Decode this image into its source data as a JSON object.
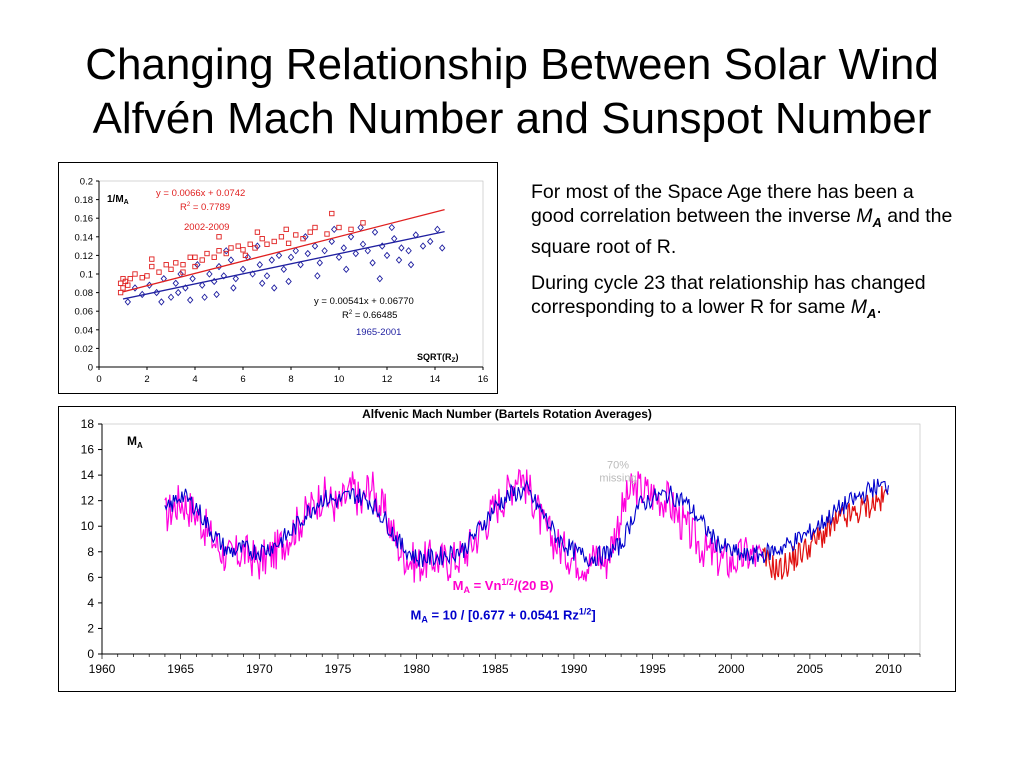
{
  "title": {
    "line1": "Changing Relationship Between Solar Wind",
    "line2": "Alfvén Mach Number and Sunspot Number"
  },
  "text": {
    "p1_a": "For most of the Space Age there has been a good correlation between the inverse ",
    "p1_ma": "M",
    "p1_ma_sub": "A",
    "p1_b": " and the square root of R.",
    "p2_a": "During cycle 23 that relationship has changed corresponding to a lower R for same ",
    "p2_ma": "M",
    "p2_ma_sub": "A",
    "p2_b": "."
  },
  "chart_data": [
    {
      "type": "scatter",
      "title": "",
      "ylabel_main": "1/M",
      "ylabel_sub": "A",
      "xlabel_main": "SQRT(R",
      "xlabel_sub": "Z",
      "xlabel_end": ")",
      "xlim": [
        0,
        16
      ],
      "ylim": [
        0,
        0.2
      ],
      "xticks": [
        "0",
        "2",
        "4",
        "6",
        "8",
        "10",
        "12",
        "14",
        "16"
      ],
      "yticks": [
        "0",
        "0.02",
        "0.04",
        "0.06",
        "0.08",
        "0.1",
        "0.12",
        "0.14",
        "0.16",
        "0.18",
        "0.2"
      ],
      "grid": false,
      "series": [
        {
          "name": "2002-2009",
          "color": "#e02020",
          "marker": "square",
          "fit_eq": "y = 0.0066x + 0.0742",
          "fit_r2_label": "R",
          "fit_r2_value": " = 0.7789",
          "fit": {
            "slope": 0.0066,
            "intercept": 0.0742,
            "x_range": [
              1,
              14.4
            ]
          },
          "x": [
            0.9,
            0.9,
            1.0,
            1.0,
            1.1,
            1.2,
            1.3,
            1.5,
            1.8,
            2.0,
            2.2,
            2.5,
            2.8,
            3.0,
            3.2,
            3.5,
            3.8,
            4.0,
            4.3,
            4.5,
            4.8,
            5.0,
            5.3,
            5.5,
            5.8,
            6.0,
            6.3,
            6.5,
            6.8,
            7.0,
            7.3,
            7.6,
            7.9,
            8.2,
            8.5,
            8.8,
            9.0,
            9.5,
            9.7,
            10.0,
            10.5,
            11.0,
            4.0,
            5.0,
            6.1,
            3.5,
            7.8,
            2.2,
            6.6
          ],
          "y": [
            0.08,
            0.09,
            0.095,
            0.085,
            0.092,
            0.088,
            0.095,
            0.1,
            0.096,
            0.098,
            0.108,
            0.102,
            0.11,
            0.105,
            0.112,
            0.11,
            0.118,
            0.108,
            0.115,
            0.122,
            0.118,
            0.125,
            0.122,
            0.128,
            0.13,
            0.126,
            0.132,
            0.128,
            0.138,
            0.132,
            0.135,
            0.14,
            0.133,
            0.142,
            0.138,
            0.145,
            0.15,
            0.143,
            0.165,
            0.15,
            0.148,
            0.155,
            0.118,
            0.14,
            0.12,
            0.102,
            0.148,
            0.116,
            0.145
          ]
        },
        {
          "name": "1965-2001",
          "color": "#1f1fa0",
          "marker": "diamond",
          "fit_eq": "y = 0.00541x + 0.06770",
          "fit_r2_label": "R",
          "fit_r2_value": " = 0.66485",
          "fit": {
            "slope": 0.00541,
            "intercept": 0.0677,
            "x_range": [
              1,
              14.4
            ]
          },
          "x": [
            1.2,
            1.5,
            1.8,
            2.1,
            2.4,
            2.7,
            3.0,
            3.2,
            3.4,
            3.6,
            3.9,
            4.1,
            4.3,
            4.6,
            4.8,
            5.0,
            5.2,
            5.5,
            5.7,
            6.0,
            6.2,
            6.4,
            6.7,
            7.0,
            7.2,
            7.5,
            7.7,
            8.0,
            8.2,
            8.4,
            8.7,
            9.0,
            9.2,
            9.4,
            9.7,
            10.0,
            10.2,
            10.5,
            10.7,
            11.0,
            11.2,
            11.5,
            11.8,
            12.0,
            12.3,
            12.6,
            12.9,
            13.2,
            13.5,
            13.8,
            14.1,
            14.3,
            2.6,
            3.3,
            4.4,
            5.6,
            6.8,
            7.9,
            9.1,
            10.3,
            11.4,
            12.5,
            8.6,
            9.8,
            10.9,
            3.8,
            5.3,
            6.6,
            7.3,
            12.2,
            13.0,
            4.9,
            11.7
          ],
          "y": [
            0.07,
            0.085,
            0.078,
            0.088,
            0.08,
            0.095,
            0.075,
            0.09,
            0.1,
            0.085,
            0.095,
            0.11,
            0.088,
            0.1,
            0.092,
            0.108,
            0.098,
            0.115,
            0.095,
            0.105,
            0.118,
            0.1,
            0.11,
            0.098,
            0.115,
            0.12,
            0.105,
            0.118,
            0.125,
            0.11,
            0.122,
            0.13,
            0.112,
            0.125,
            0.135,
            0.118,
            0.128,
            0.14,
            0.122,
            0.132,
            0.125,
            0.145,
            0.13,
            0.12,
            0.138,
            0.128,
            0.125,
            0.142,
            0.13,
            0.135,
            0.148,
            0.128,
            0.07,
            0.08,
            0.075,
            0.085,
            0.09,
            0.092,
            0.098,
            0.105,
            0.112,
            0.115,
            0.14,
            0.148,
            0.15,
            0.072,
            0.125,
            0.13,
            0.085,
            0.15,
            0.11,
            0.078,
            0.095
          ]
        }
      ]
    },
    {
      "type": "line",
      "title": "Alfvenic Mach Number (Bartels Rotation Averages)",
      "ylabel_main": "M",
      "ylabel_sub": "A",
      "xlim": [
        1960,
        2012
      ],
      "ylim": [
        0,
        18
      ],
      "xticks": [
        "1960",
        "1965",
        "1970",
        "1975",
        "1980",
        "1985",
        "1990",
        "1995",
        "2000",
        "2005",
        "2010"
      ],
      "yticks": [
        "0",
        "2",
        "4",
        "6",
        "8",
        "10",
        "12",
        "14",
        "16",
        "18"
      ],
      "grid": false,
      "annotations": [
        {
          "text_line1": "70%",
          "text_line2": "missing",
          "x": 1992.8,
          "y": 14.5,
          "color": "#bbbbbb"
        },
        {
          "text": "M",
          "sub": "A",
          "eq": " = Vn",
          "sup": "1/2",
          "tail": "/(20 B)",
          "x": 1985.5,
          "y": 5.0,
          "color": "#ff00cc"
        },
        {
          "text": "M",
          "sub": "A",
          "eq": " = 10 / [0.677 + 0.0541 Rz",
          "sup": "1/2",
          "tail": "]",
          "x": 1985.5,
          "y": 2.7,
          "color": "#0000cc"
        }
      ],
      "series": [
        {
          "name": "M_A = Vn^1/2/(20 B)",
          "color": "#ff00dd",
          "x": [
            1964.0,
            1965.0,
            1966.0,
            1967.0,
            1968.0,
            1969.0,
            1970.0,
            1971.0,
            1972.0,
            1973.0,
            1974.0,
            1975.0,
            1976.0,
            1976.5,
            1977.0,
            1977.5,
            1978.0,
            1979.0,
            1980.0,
            1981.0,
            1982.0,
            1983.0,
            1984.0,
            1985.0,
            1986.0,
            1986.5,
            1987.0,
            1987.5,
            1988.0,
            1989.0,
            1990.0,
            1991.0,
            1991.5,
            1992.0,
            1992.5,
            1993.0,
            1993.5,
            1994.0,
            1995.0,
            1996.0,
            1997.0,
            1998.0,
            1999.0,
            2000.0,
            2001.0,
            2002.0
          ],
          "y": [
            10.8,
            12.0,
            11.0,
            9.0,
            7.5,
            8.0,
            7.2,
            8.0,
            9.5,
            11.0,
            12.5,
            11.5,
            13.0,
            11.5,
            13.5,
            12.0,
            11.0,
            8.0,
            7.0,
            7.5,
            7.2,
            7.8,
            9.5,
            11.5,
            13.0,
            14.5,
            13.0,
            12.0,
            10.0,
            8.5,
            7.5,
            7.0,
            8.0,
            7.0,
            9.0,
            11.0,
            12.5,
            13.0,
            12.5,
            12.0,
            10.0,
            8.5,
            7.5,
            7.2,
            7.8,
            7.5
          ]
        },
        {
          "name": "M_A = 10 / [0.677 + 0.0541 Rz^1/2] (2002-2010)",
          "color": "#e01010",
          "x": [
            2002.0,
            2002.5,
            2003.0,
            2003.5,
            2004.0,
            2004.5,
            2005.0,
            2005.5,
            2006.0,
            2006.5,
            2007.0,
            2007.5,
            2008.0,
            2008.5,
            2009.0,
            2009.5,
            2010.0
          ],
          "y": [
            7.5,
            7.0,
            6.5,
            7.0,
            7.5,
            8.0,
            8.5,
            9.0,
            9.5,
            10.0,
            10.5,
            10.8,
            11.0,
            11.5,
            11.8,
            12.0,
            12.5
          ]
        },
        {
          "name": "M_A = 10 / [0.677 + 0.0541 Rz^1/2]",
          "color": "#0000cc",
          "x": [
            1964.0,
            1965.0,
            1966.0,
            1967.0,
            1968.0,
            1969.0,
            1970.0,
            1971.0,
            1972.0,
            1973.0,
            1974.0,
            1975.0,
            1976.0,
            1977.0,
            1978.0,
            1979.0,
            1980.0,
            1981.0,
            1982.0,
            1983.0,
            1984.0,
            1985.0,
            1986.0,
            1987.0,
            1988.0,
            1989.0,
            1990.0,
            1991.0,
            1992.0,
            1993.0,
            1994.0,
            1995.0,
            1996.0,
            1997.0,
            1998.0,
            1999.0,
            2000.0,
            2001.0,
            2002.0,
            2003.0,
            2004.0,
            2005.0,
            2006.0,
            2007.0,
            2008.0,
            2009.0,
            2010.0
          ],
          "y": [
            11.0,
            12.5,
            11.5,
            9.5,
            8.0,
            8.2,
            8.0,
            8.5,
            9.5,
            11.0,
            12.2,
            12.0,
            12.5,
            12.0,
            10.5,
            8.5,
            7.5,
            7.5,
            7.8,
            8.2,
            9.8,
            11.5,
            12.5,
            12.8,
            11.0,
            9.0,
            8.0,
            7.5,
            7.8,
            8.5,
            11.5,
            12.2,
            12.5,
            12.0,
            10.5,
            8.8,
            8.0,
            7.6,
            7.8,
            8.2,
            8.8,
            9.5,
            10.5,
            11.5,
            12.2,
            13.0,
            13.2
          ]
        }
      ]
    }
  ]
}
